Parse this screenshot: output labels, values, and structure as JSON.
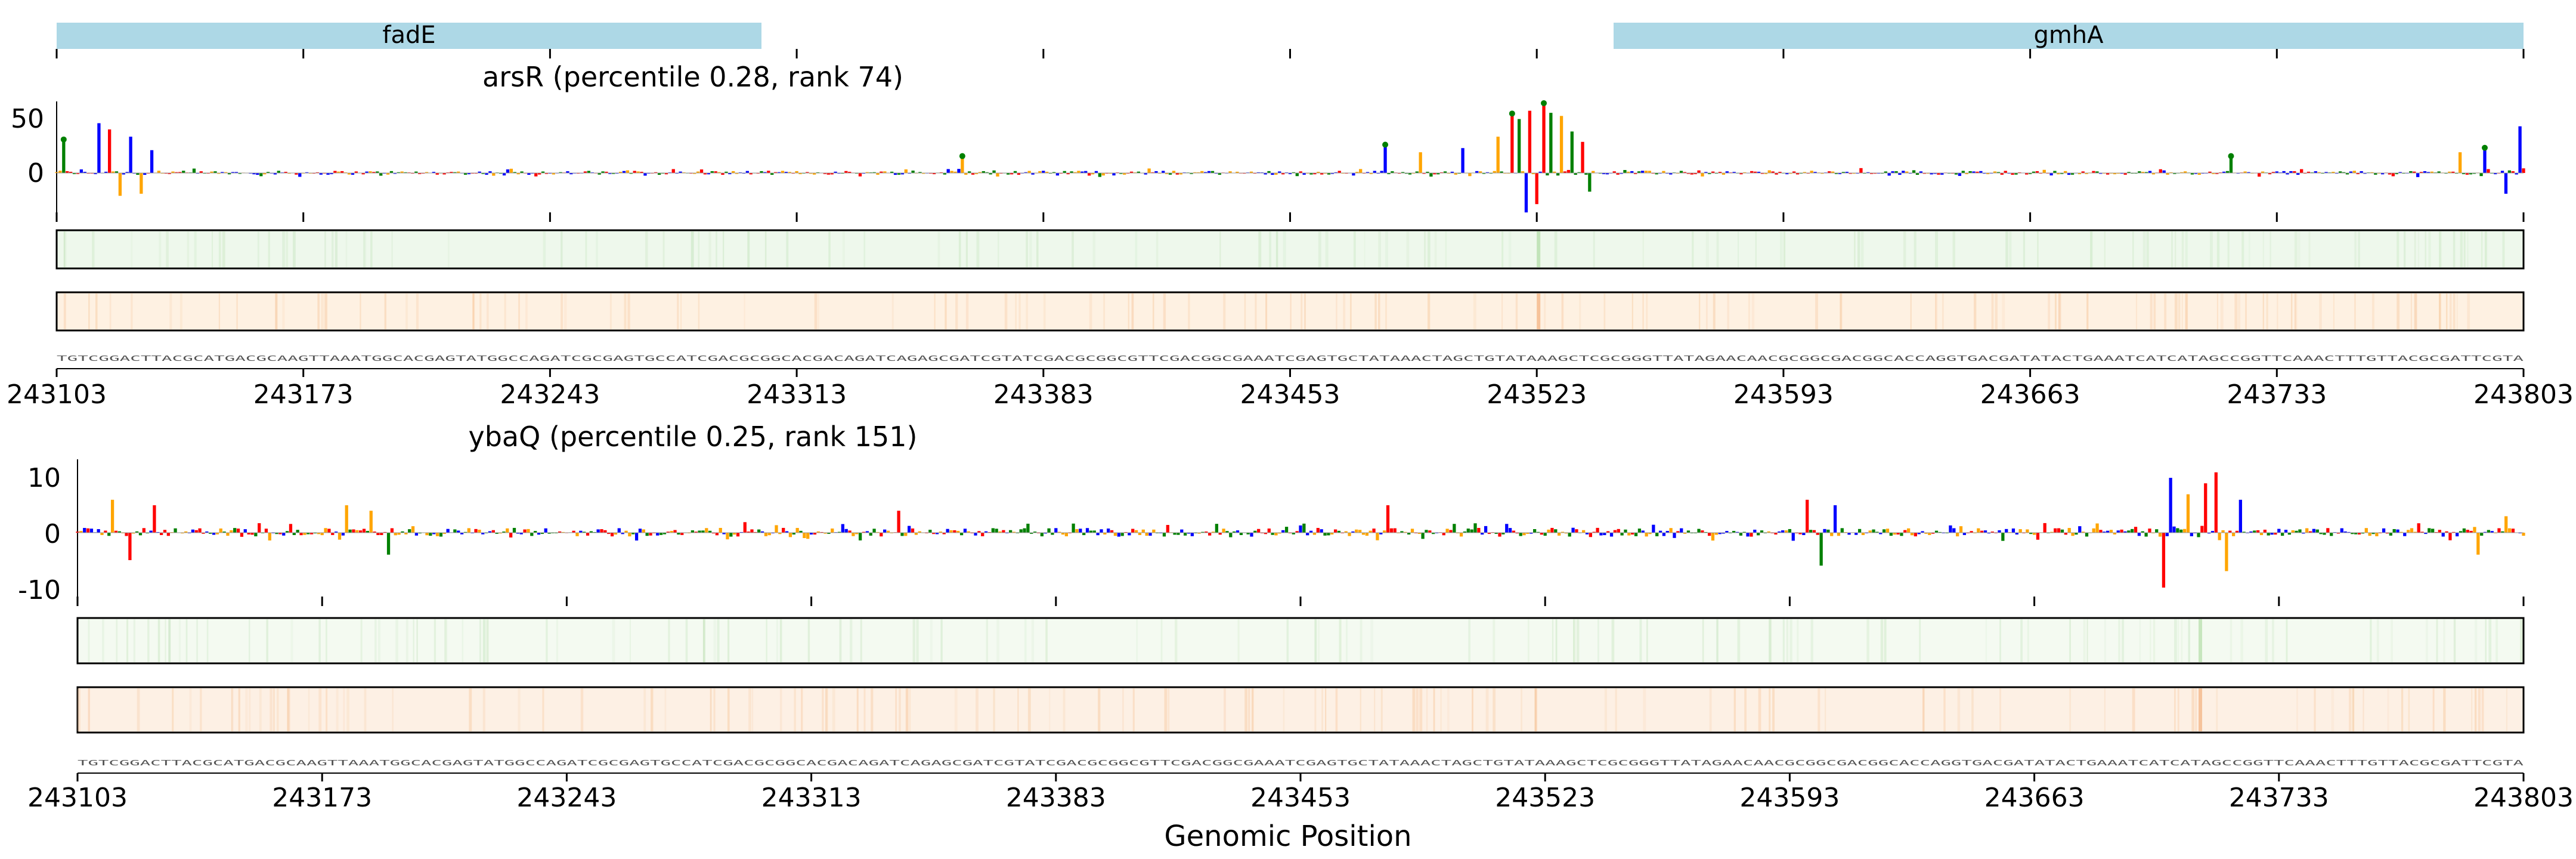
{
  "chart_data": {
    "type": "sequence-logo-tracks",
    "region": {
      "start": 243103,
      "end": 243803
    },
    "genes": [
      {
        "name": "fadE",
        "start": 243103,
        "end": 243303,
        "color": "#add8e6"
      },
      {
        "name": "gmhA",
        "start": 243526,
        "end": 243803,
        "color": "#add8e6"
      }
    ],
    "x_ticks": [
      243103,
      243173,
      243243,
      243313,
      243383,
      243453,
      243523,
      243593,
      243663,
      243733,
      243803
    ],
    "xlabel": "Genomic Position",
    "base_colors": {
      "A": "#008000",
      "C": "#0000ff",
      "G": "#ffa500",
      "T": "#ff0000"
    },
    "panels": [
      {
        "title": "arsR (percentile 0.28, rank 74)",
        "ylim": [
          -45,
          70
        ],
        "y_ticks": [
          50,
          0
        ],
        "heatmap_colors": [
          "#eef8ec",
          "#fef1e2"
        ],
        "peaks": [
          {
            "pos": 243105,
            "value": 30
          },
          {
            "pos": 243115,
            "value": 48
          },
          {
            "pos": 243118,
            "value": 42
          },
          {
            "pos": 243121,
            "value": -22
          },
          {
            "pos": 243124,
            "value": 35
          },
          {
            "pos": 243127,
            "value": -20
          },
          {
            "pos": 243130,
            "value": 22
          },
          {
            "pos": 243360,
            "value": 14
          },
          {
            "pos": 243480,
            "value": 25
          },
          {
            "pos": 243490,
            "value": 20
          },
          {
            "pos": 243502,
            "value": 24
          },
          {
            "pos": 243512,
            "value": 35
          },
          {
            "pos": 243516,
            "value": 55
          },
          {
            "pos": 243518,
            "value": 52
          },
          {
            "pos": 243520,
            "value": -38
          },
          {
            "pos": 243521,
            "value": 60
          },
          {
            "pos": 243523,
            "value": -30
          },
          {
            "pos": 243525,
            "value": 65
          },
          {
            "pos": 243527,
            "value": 58
          },
          {
            "pos": 243530,
            "value": 55
          },
          {
            "pos": 243533,
            "value": 40
          },
          {
            "pos": 243536,
            "value": 30
          },
          {
            "pos": 243538,
            "value": -18
          },
          {
            "pos": 243720,
            "value": 14
          },
          {
            "pos": 243785,
            "value": 20
          },
          {
            "pos": 243792,
            "value": 22
          },
          {
            "pos": 243798,
            "value": -20
          },
          {
            "pos": 243802,
            "value": 45
          }
        ]
      },
      {
        "title": "ybaQ (percentile 0.25, rank 151)",
        "ylim": [
          -12,
          13
        ],
        "y_ticks": [
          10,
          0,
          -10
        ],
        "heatmap_colors": [
          "#f4faf1",
          "#fdf0e4"
        ],
        "peaks": [
          {
            "pos": 243113,
            "value": 6
          },
          {
            "pos": 243118,
            "value": -5
          },
          {
            "pos": 243125,
            "value": 5
          },
          {
            "pos": 243180,
            "value": 5
          },
          {
            "pos": 243187,
            "value": 4
          },
          {
            "pos": 243192,
            "value": -4
          },
          {
            "pos": 243338,
            "value": 4
          },
          {
            "pos": 243478,
            "value": 5
          },
          {
            "pos": 243598,
            "value": 6
          },
          {
            "pos": 243602,
            "value": -6
          },
          {
            "pos": 243606,
            "value": 5
          },
          {
            "pos": 243700,
            "value": -10
          },
          {
            "pos": 243702,
            "value": 10
          },
          {
            "pos": 243707,
            "value": 7
          },
          {
            "pos": 243712,
            "value": 9
          },
          {
            "pos": 243715,
            "value": 11
          },
          {
            "pos": 243718,
            "value": -7
          },
          {
            "pos": 243722,
            "value": 6
          },
          {
            "pos": 243790,
            "value": -4
          },
          {
            "pos": 243798,
            "value": 3
          }
        ]
      }
    ]
  }
}
